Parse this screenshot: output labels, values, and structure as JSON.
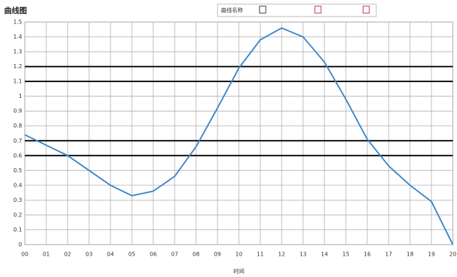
{
  "chart_data": {
    "type": "line",
    "title": "曲线图",
    "x_label": "时间",
    "categories": [
      "00",
      "01",
      "02",
      "03",
      "04",
      "05",
      "06",
      "07",
      "08",
      "09",
      "10",
      "11",
      "12",
      "13",
      "14",
      "15",
      "16",
      "17",
      "18",
      "19",
      "20"
    ],
    "series": [
      {
        "name": "曲线名称",
        "color": "#3a86c8",
        "values": [
          0.74,
          0.67,
          0.6,
          0.5,
          0.4,
          0.33,
          0.36,
          0.46,
          0.66,
          0.92,
          1.19,
          1.38,
          1.46,
          1.4,
          1.23,
          0.98,
          0.71,
          0.53,
          0.4,
          0.29,
          0
        ]
      }
    ],
    "reference_lines": [
      1.2,
      1.1,
      0.7,
      0.6
    ],
    "ylim": [
      0,
      1.5
    ],
    "yticks": [
      0,
      0.1,
      0.2,
      0.3,
      0.4,
      0.5,
      0.6,
      0.7,
      0.8,
      0.9,
      1,
      1.1,
      1.2,
      1.3,
      1.4,
      1.5
    ],
    "grid": true
  }
}
